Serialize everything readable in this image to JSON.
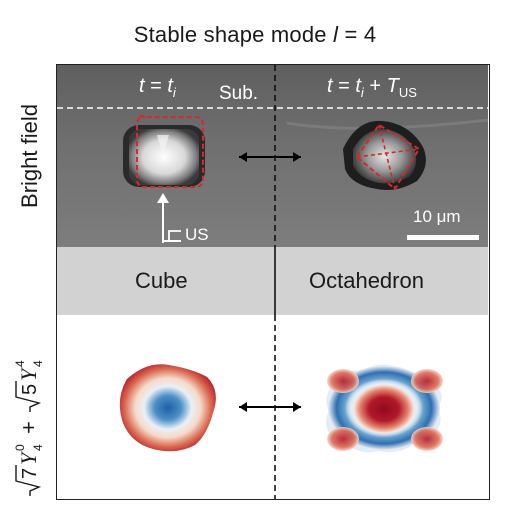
{
  "figure": {
    "title_prefix": "Stable shape mode ",
    "title_var": "l",
    "title_suffix": " = 4",
    "row_label_bright_field": "Bright field",
    "left_time": {
      "t": "t",
      "eq": " = ",
      "ti": "t",
      "sub_i": "i"
    },
    "right_time": {
      "t": "t",
      "eq": " = ",
      "ti": "t",
      "sub_i": "i",
      "plus": " + ",
      "T": "T",
      "sub_us": "US"
    },
    "substrate_label": "Sub.",
    "scale_bar_label": "10 μm",
    "us_arrow_label": "US",
    "left_shape_name": "Cube",
    "right_shape_name": "Octahedron",
    "formula_row_label": "√7Y40 + √5Y44",
    "colors": {
      "bright_field_bg": "#6e6e6e",
      "band_gray": "#d2d2d2",
      "dashed_outline": "#d42a2a",
      "red_map": "#b2182b",
      "blue_map": "#2166ac"
    }
  }
}
